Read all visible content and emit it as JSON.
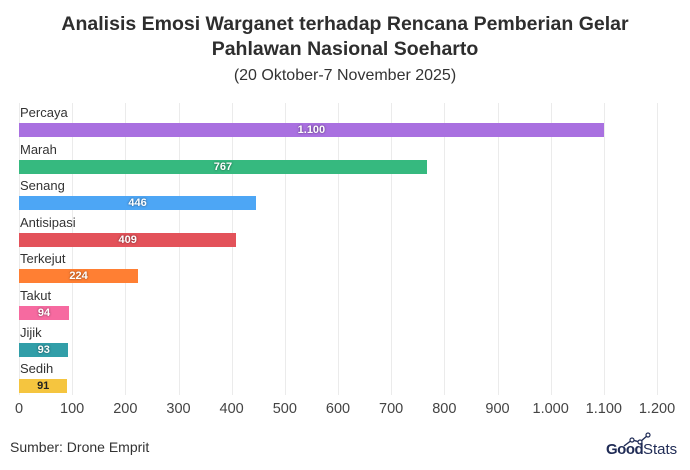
{
  "header": {
    "title_line1": "Analisis Emosi Warganet terhadap Rencana Pemberian Gelar",
    "title_line2": "Pahlawan Nasional Soeharto",
    "subtitle": "(20 Oktober-7 November 2025)"
  },
  "footer": {
    "source": "Sumber: Drone Emprit",
    "logo_bold": "Good",
    "logo_light": "Stats"
  },
  "axis": {
    "ticks": [
      "0",
      "100",
      "200",
      "300",
      "400",
      "500",
      "600",
      "700",
      "800",
      "900",
      "1.000",
      "1.100",
      "1.200"
    ]
  },
  "bars": [
    {
      "label": "Percaya",
      "value": 1100,
      "display": "1.100",
      "color": "#a970e0"
    },
    {
      "label": "Marah",
      "value": 767,
      "display": "767",
      "color": "#36b97f"
    },
    {
      "label": "Senang",
      "value": 446,
      "display": "446",
      "color": "#4da6f5"
    },
    {
      "label": "Antisipasi",
      "value": 409,
      "display": "409",
      "color": "#e3525a"
    },
    {
      "label": "Terkejut",
      "value": 224,
      "display": "224",
      "color": "#ff7f33"
    },
    {
      "label": "Takut",
      "value": 94,
      "display": "94",
      "color": "#f66aa0"
    },
    {
      "label": "Jijik",
      "value": 93,
      "display": "93",
      "color": "#319ea8"
    },
    {
      "label": "Sedih",
      "value": 91,
      "display": "91",
      "color": "#f5c53f"
    }
  ],
  "chart_data": {
    "type": "bar",
    "orientation": "horizontal",
    "title": "Analisis Emosi Warganet terhadap Rencana Pemberian Gelar Pahlawan Nasional Soeharto",
    "subtitle": "(20 Oktober-7 November 2025)",
    "categories": [
      "Percaya",
      "Marah",
      "Senang",
      "Antisipasi",
      "Terkejut",
      "Takut",
      "Jijik",
      "Sedih"
    ],
    "values": [
      1100,
      767,
      446,
      409,
      224,
      94,
      93,
      91
    ],
    "colors": [
      "#a970e0",
      "#36b97f",
      "#4da6f5",
      "#e3525a",
      "#ff7f33",
      "#f66aa0",
      "#319ea8",
      "#f5c53f"
    ],
    "xlabel": "",
    "ylabel": "",
    "xlim": [
      0,
      1200
    ],
    "x_ticks": [
      0,
      100,
      200,
      300,
      400,
      500,
      600,
      700,
      800,
      900,
      1000,
      1100,
      1200
    ],
    "grid": "vertical",
    "legend": "none",
    "data_labels": true,
    "source": "Sumber: Drone Emprit"
  }
}
